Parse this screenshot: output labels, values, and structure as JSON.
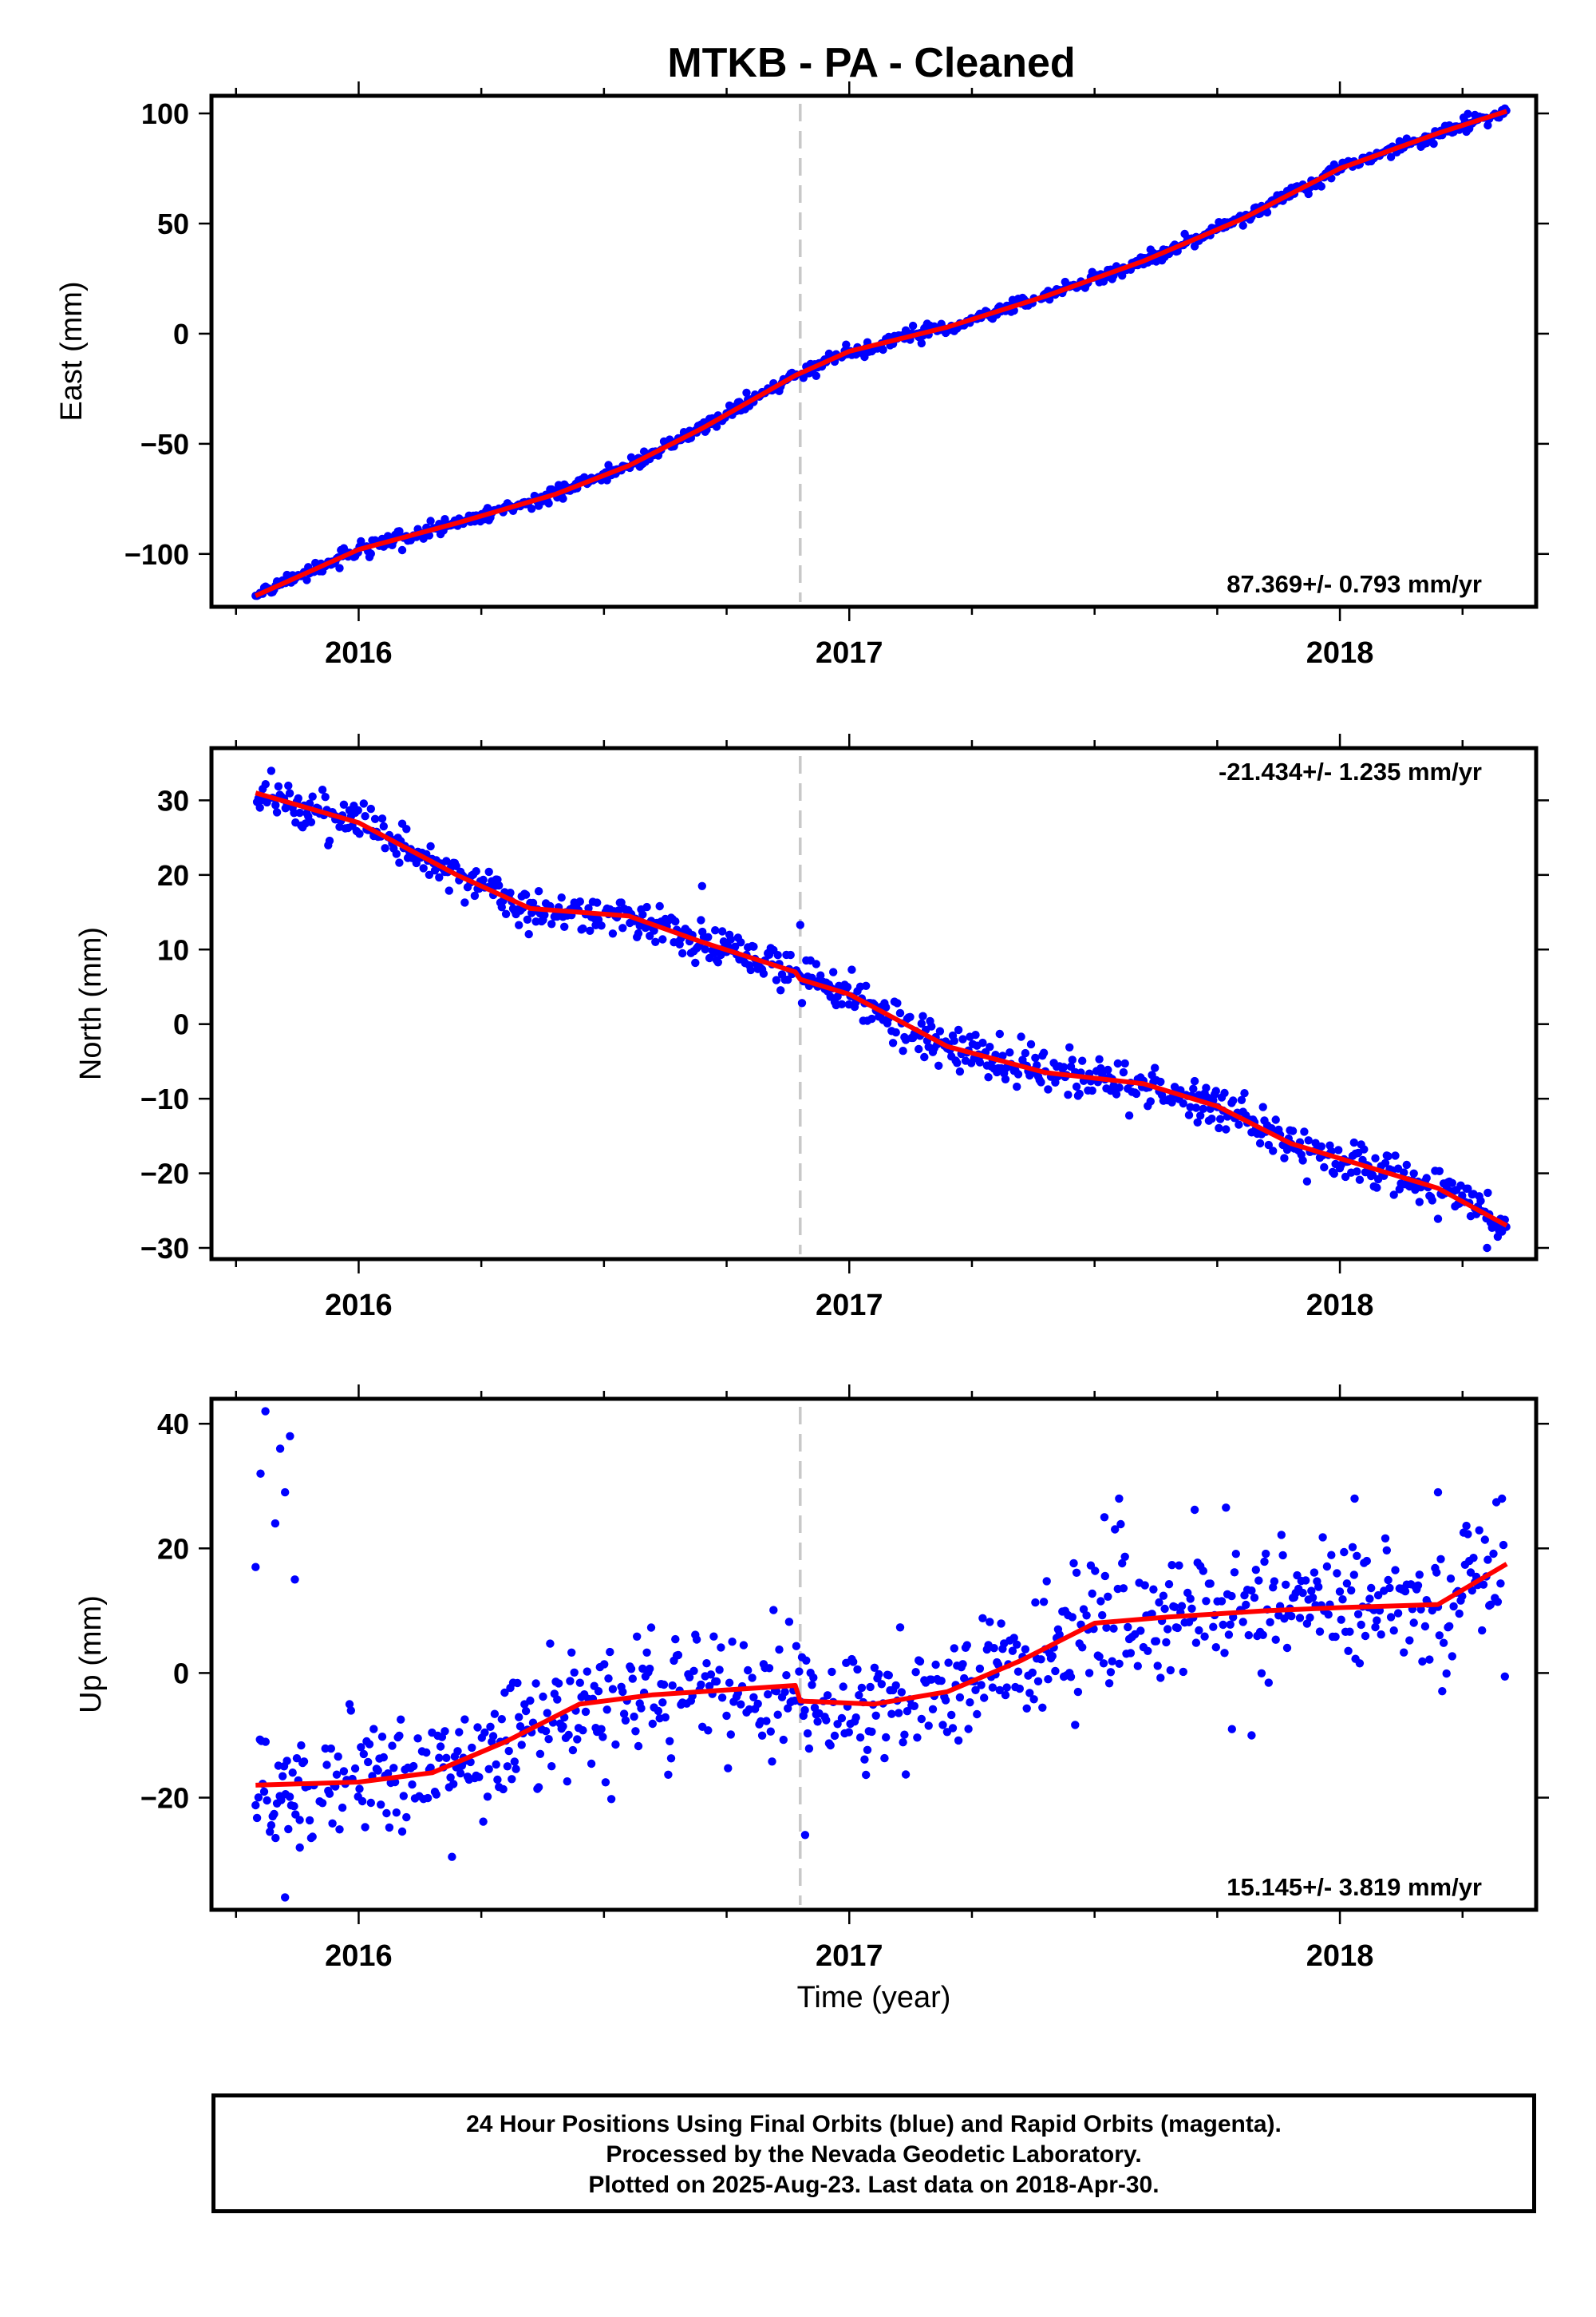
{
  "figure": {
    "title": "MTKB  - PA - Cleaned",
    "xlabel": "Time (year)",
    "footer_lines": [
      "24 Hour Positions Using Final Orbits (blue) and Rapid Orbits (magenta).",
      "Processed by the Nevada Geodetic Laboratory.",
      "Plotted on 2025-Aug-23. Last data on 2018-Apr-30."
    ],
    "colors": {
      "points": "#0000ff",
      "fit": "#ff0000",
      "event_line": "#c8c8c8"
    }
  },
  "chart_data": [
    {
      "type": "scatter",
      "component": "east",
      "ylabel": "East (mm)",
      "rate_label": "87.369+/- 0.793 mm/yr",
      "rate_position": "bottom-right",
      "xlim": [
        2015.7,
        2018.4
      ],
      "ylim": [
        -124,
        108
      ],
      "xticks": [
        2016,
        2017,
        2018
      ],
      "yticks": [
        -100,
        -50,
        0,
        50,
        100
      ],
      "event_line_x": 2016.9,
      "fit_knots": [
        [
          2015.79,
          -119
        ],
        [
          2016.0,
          -98
        ],
        [
          2016.2,
          -86
        ],
        [
          2016.4,
          -73
        ],
        [
          2016.55,
          -60
        ],
        [
          2016.7,
          -43
        ],
        [
          2016.89,
          -19
        ],
        [
          2017.0,
          -8
        ],
        [
          2017.2,
          3
        ],
        [
          2017.4,
          17
        ],
        [
          2017.6,
          33
        ],
        [
          2017.8,
          52
        ],
        [
          2018.0,
          75
        ],
        [
          2018.2,
          91
        ],
        [
          2018.34,
          101
        ]
      ],
      "scatter": {
        "sigma": 1.6,
        "outliers": []
      }
    },
    {
      "type": "scatter",
      "component": "north",
      "ylabel": "North (mm)",
      "rate_label": "-21.434+/- 1.235 mm/yr",
      "rate_position": "top-right",
      "xlim": [
        2015.7,
        2018.4
      ],
      "ylim": [
        -31.5,
        37
      ],
      "xticks": [
        2016,
        2017,
        2018
      ],
      "yticks": [
        -30,
        -20,
        -10,
        0,
        10,
        20,
        30
      ],
      "event_line_x": 2016.9,
      "fit_knots": [
        [
          2015.79,
          31
        ],
        [
          2016.0,
          27
        ],
        [
          2016.2,
          20
        ],
        [
          2016.35,
          15.5
        ],
        [
          2016.55,
          14.5
        ],
        [
          2016.7,
          11
        ],
        [
          2016.89,
          7
        ],
        [
          2016.9,
          6
        ],
        [
          2017.0,
          4
        ],
        [
          2017.2,
          -3
        ],
        [
          2017.4,
          -6.5
        ],
        [
          2017.6,
          -8
        ],
        [
          2017.75,
          -11
        ],
        [
          2017.9,
          -16
        ],
        [
          2018.05,
          -19
        ],
        [
          2018.2,
          -22
        ],
        [
          2018.34,
          -27
        ]
      ],
      "scatter": {
        "sigma": 1.4,
        "outliers": [
          [
            2016.7,
            18.5
          ],
          [
            2016.9,
            13.3
          ],
          [
            2018.3,
            -30
          ]
        ]
      }
    },
    {
      "type": "scatter",
      "component": "up",
      "ylabel": "Up (mm)",
      "rate_label": "15.145+/- 3.819 mm/yr",
      "rate_position": "bottom-right",
      "xlim": [
        2015.7,
        2018.4
      ],
      "ylim": [
        -38,
        44
      ],
      "xticks": [
        2016,
        2017,
        2018
      ],
      "yticks": [
        -20,
        0,
        20,
        40
      ],
      "event_line_x": 2016.9,
      "fit_knots": [
        [
          2015.79,
          -18
        ],
        [
          2016.0,
          -17.5
        ],
        [
          2016.15,
          -16
        ],
        [
          2016.3,
          -11
        ],
        [
          2016.45,
          -5
        ],
        [
          2016.6,
          -3.5
        ],
        [
          2016.89,
          -2
        ],
        [
          2016.9,
          -4.5
        ],
        [
          2017.05,
          -5
        ],
        [
          2017.2,
          -3
        ],
        [
          2017.35,
          2
        ],
        [
          2017.5,
          8
        ],
        [
          2017.65,
          9
        ],
        [
          2017.85,
          10
        ],
        [
          2018.0,
          10.5
        ],
        [
          2018.2,
          11
        ],
        [
          2018.34,
          17.5
        ]
      ],
      "scatter": {
        "sigma": 5.2,
        "outliers": [
          [
            2015.8,
            32
          ],
          [
            2015.81,
            42
          ],
          [
            2015.83,
            24
          ],
          [
            2015.84,
            36
          ],
          [
            2015.85,
            29
          ],
          [
            2015.87,
            15
          ],
          [
            2015.86,
            38
          ],
          [
            2015.79,
            17
          ],
          [
            2015.85,
            -36
          ],
          [
            2015.88,
            -28
          ],
          [
            2016.91,
            -26
          ],
          [
            2017.52,
            25
          ],
          [
            2017.55,
            28
          ],
          [
            2017.78,
            -9
          ],
          [
            2017.82,
            -10
          ],
          [
            2018.03,
            28
          ],
          [
            2018.2,
            29
          ]
        ]
      }
    }
  ]
}
